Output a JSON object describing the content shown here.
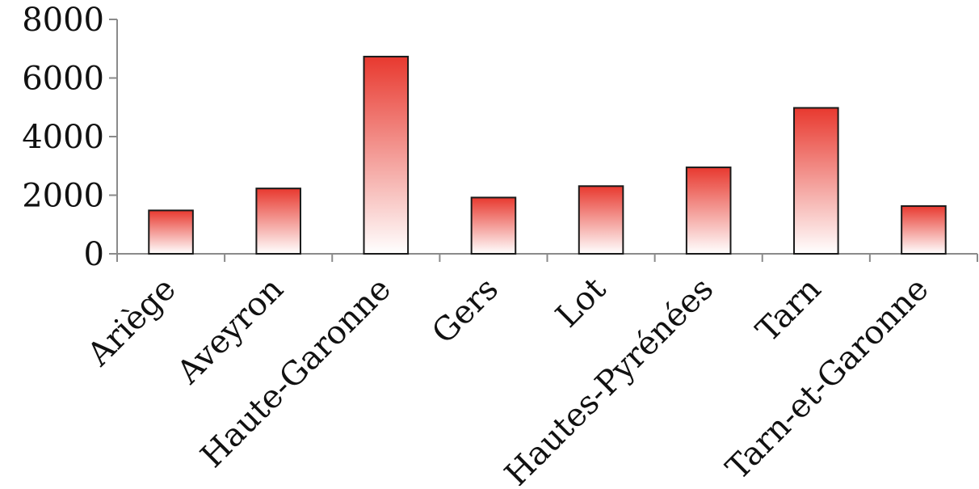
{
  "chart_data": {
    "type": "bar",
    "categories": [
      "Ariège",
      "Aveyron",
      "Haute-Garonne",
      "Gers",
      "Lot",
      "Hautes-Pyrénées",
      "Tarn",
      "Tarn-et-Garonne"
    ],
    "values": [
      1480,
      2230,
      6730,
      1920,
      2310,
      2950,
      4980,
      1630
    ],
    "title": "",
    "xlabel": "",
    "ylabel": "",
    "ylim": [
      0,
      8000
    ],
    "yticks": [
      0,
      2000,
      4000,
      6000,
      8000
    ],
    "grid": false,
    "legend": "none",
    "colors": {
      "bar_top": "#e8392f",
      "bar_bottom": "#ffffff",
      "bar_stroke": "#1a1a1a",
      "axis": "#8a8a8a"
    }
  }
}
